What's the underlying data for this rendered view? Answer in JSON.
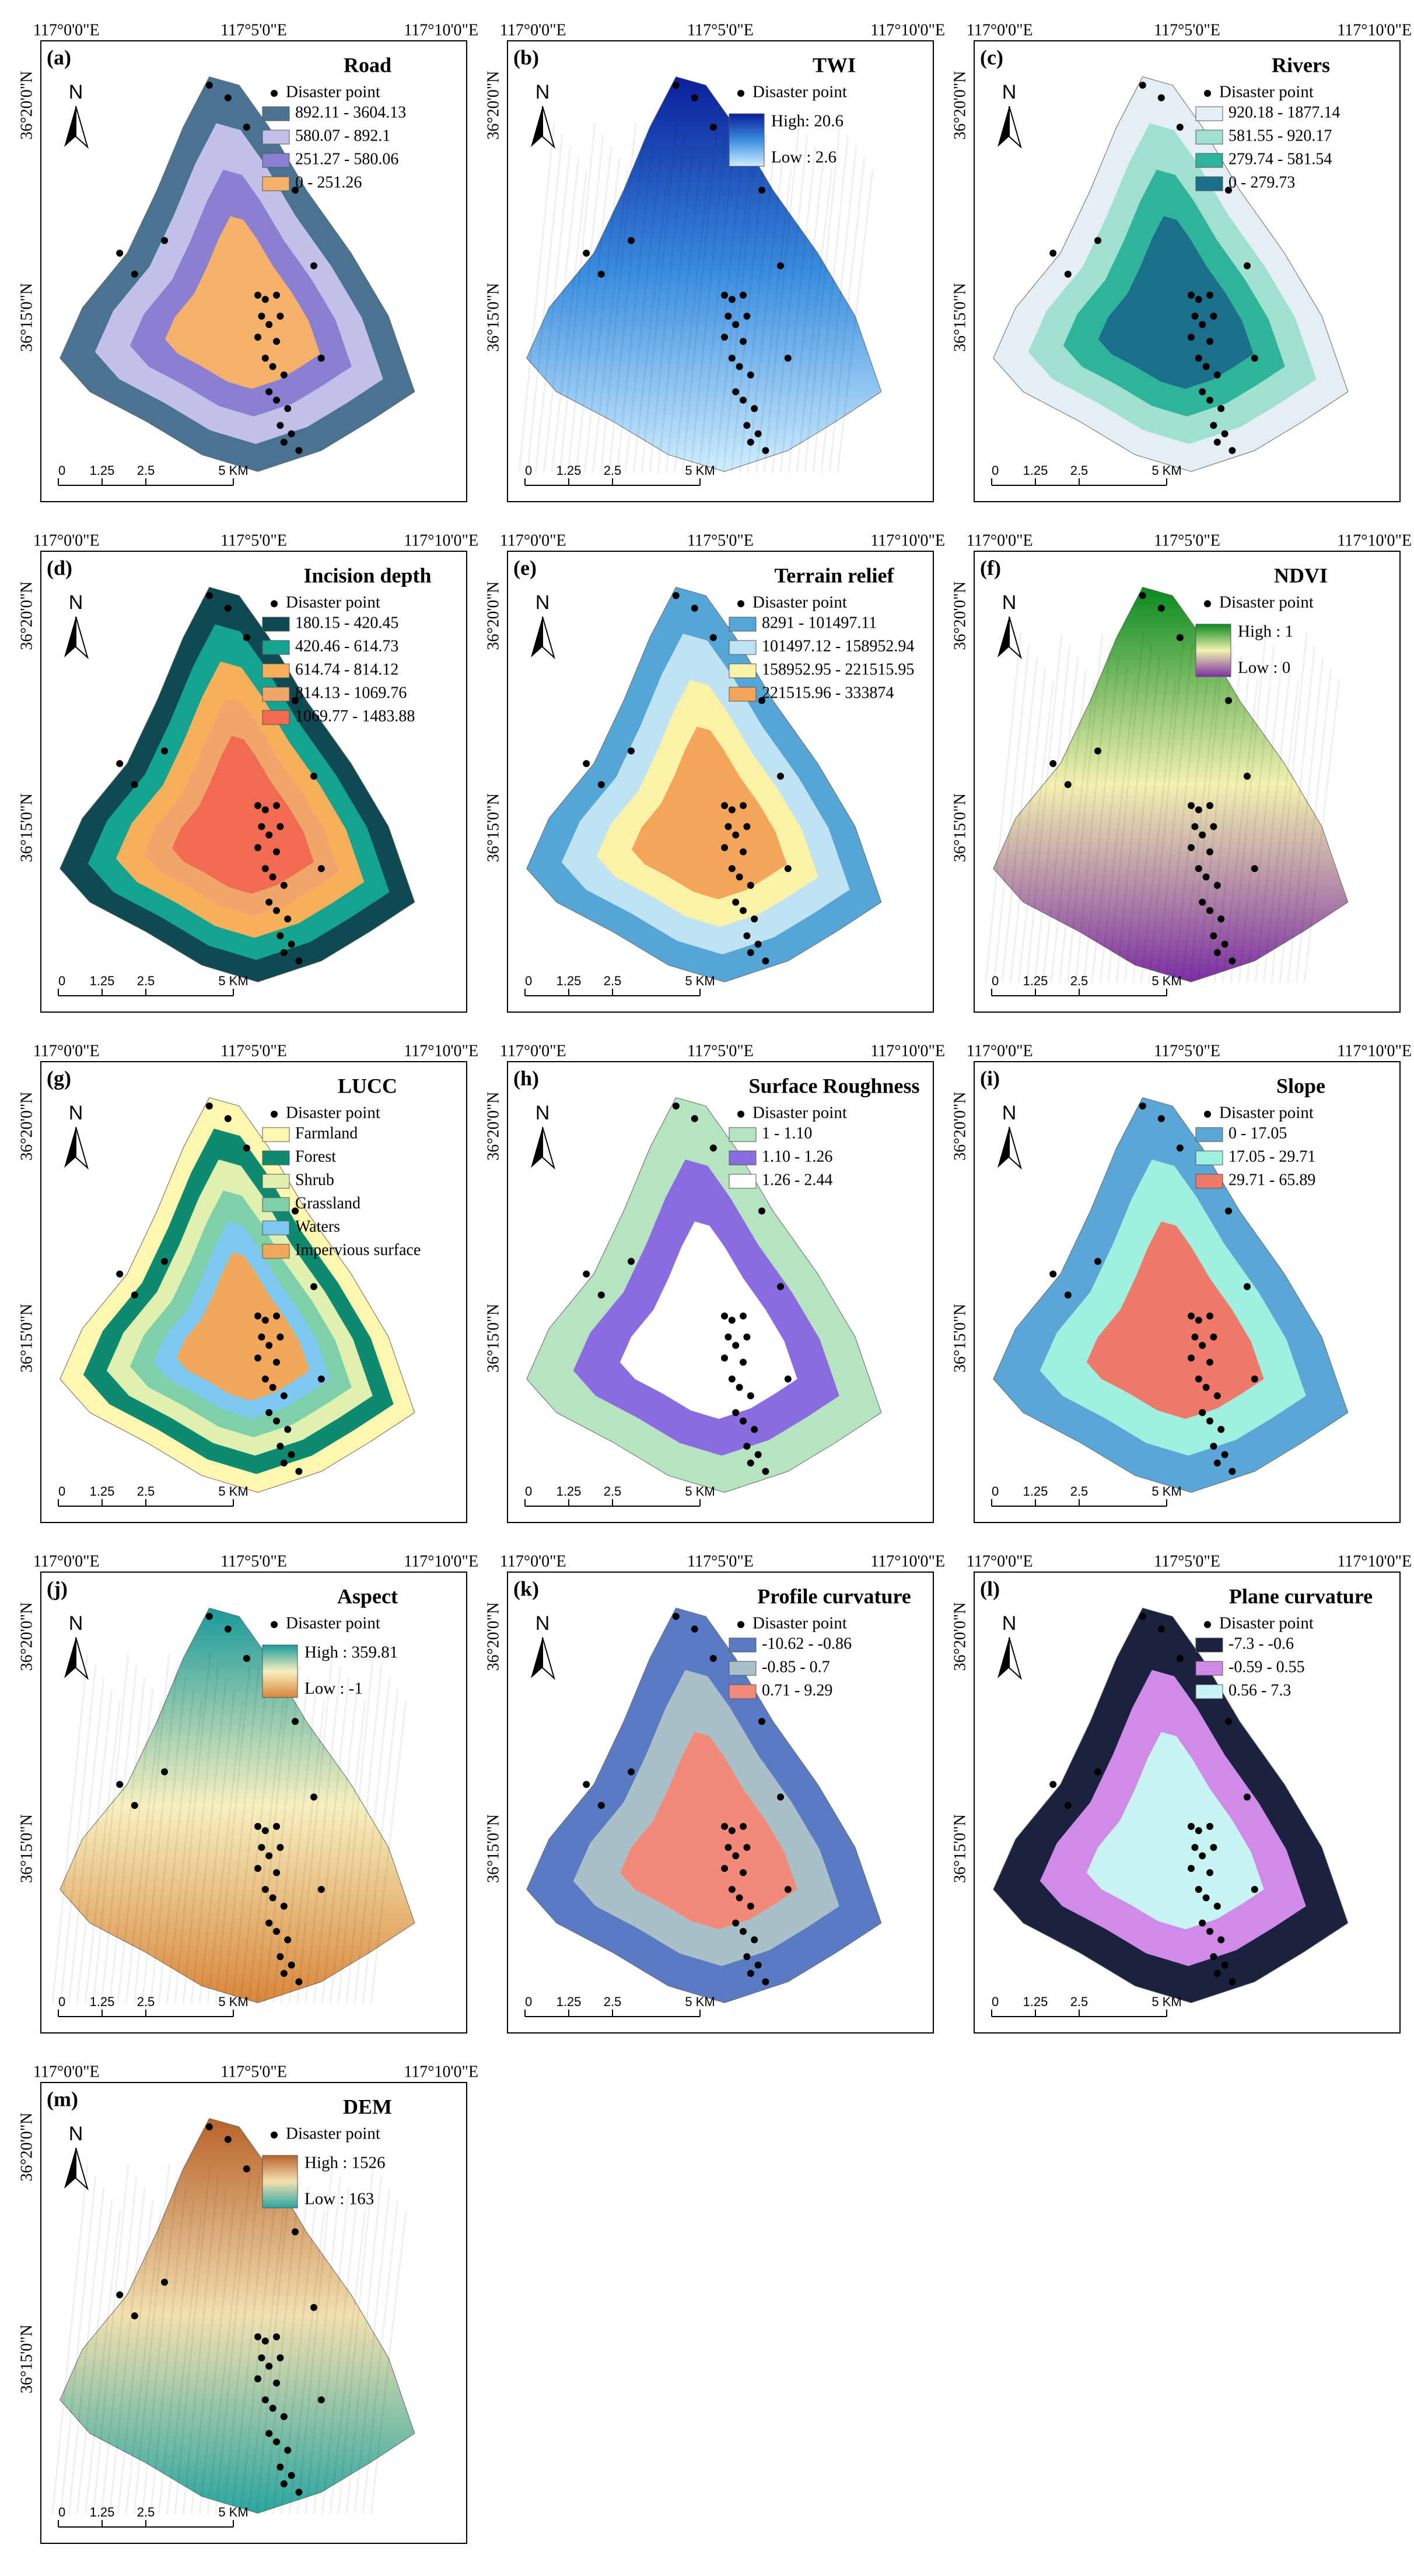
{
  "graticule": {
    "lon": [
      "117°0'0\"E",
      "117°5'0\"E",
      "117°10'0\"E"
    ],
    "lat": [
      "36°20'0\"N",
      "36°15'0\"N"
    ]
  },
  "north": "N",
  "scale_bar": [
    "0",
    "1.25",
    "2.5",
    "5 KM"
  ],
  "panels": [
    {
      "label": "(a)",
      "title": "Road",
      "point": "Disaster point",
      "legend": [
        {
          "text": "892.11 - 3604.13",
          "color": "#4a7391"
        },
        {
          "text": "580.07 - 892.1",
          "color": "#c2bfe8"
        },
        {
          "text": "251.27 - 580.06",
          "color": "#8a7fd0"
        },
        {
          "text": "0 - 251.26",
          "color": "#f5b06a"
        }
      ]
    },
    {
      "label": "(b)",
      "title": "TWI",
      "point": "Disaster point",
      "gradient": {
        "high": "High: 20.6",
        "low": "Low : 2.6",
        "colors": [
          "#0a1f9a",
          "#3a8ee0",
          "#cfeeff"
        ]
      }
    },
    {
      "label": "(c)",
      "title": "Rivers",
      "point": "Disaster point",
      "legend": [
        {
          "text": "920.18 - 1877.14",
          "color": "#e6eef5"
        },
        {
          "text": "581.55 - 920.17",
          "color": "#9fe0cf"
        },
        {
          "text": "279.74 - 581.54",
          "color": "#2fb39a"
        },
        {
          "text": "0 - 279.73",
          "color": "#1b6f8a"
        }
      ]
    },
    {
      "label": "(d)",
      "title": "Incision depth",
      "point": "Disaster point",
      "legend": [
        {
          "text": "180.15 - 420.45",
          "color": "#0f4a52"
        },
        {
          "text": "420.46 - 614.73",
          "color": "#13a38e"
        },
        {
          "text": "614.74 - 814.12",
          "color": "#f6b05c"
        },
        {
          "text": "814.13 - 1069.76",
          "color": "#f0a66a"
        },
        {
          "text": "1069.77 - 1483.88",
          "color": "#f26a50"
        }
      ]
    },
    {
      "label": "(e)",
      "title": "Terrain relief",
      "point": "Disaster point",
      "legend": [
        {
          "text": "8291 - 101497.11",
          "color": "#55a6d6"
        },
        {
          "text": "101497.12 - 158952.94",
          "color": "#bfe3f2"
        },
        {
          "text": "158952.95 - 221515.95",
          "color": "#fbf2a8"
        },
        {
          "text": "221515.96 - 333874",
          "color": "#f4a55a"
        }
      ]
    },
    {
      "label": "(f)",
      "title": "NDVI",
      "point": "Disaster point",
      "gradient": {
        "high": "High : 1",
        "low": "Low : 0",
        "colors": [
          "#0a8a1e",
          "#f3f1b0",
          "#7b2fa3"
        ]
      }
    },
    {
      "label": "(g)",
      "title": "LUCC",
      "point": "Disaster point",
      "legend": [
        {
          "text": "Farmland",
          "color": "#fff6b0"
        },
        {
          "text": "Forest",
          "color": "#0e8a70"
        },
        {
          "text": "Shrub",
          "color": "#dff0b0"
        },
        {
          "text": "Grassland",
          "color": "#7ed0a8"
        },
        {
          "text": "Waters",
          "color": "#7ec8f0"
        },
        {
          "text": "Impervious surface",
          "color": "#f2a85a"
        }
      ]
    },
    {
      "label": "(h)",
      "title": "Surface Roughness",
      "point": "Disaster point",
      "legend": [
        {
          "text": "1 - 1.10",
          "color": "#b6e3c0"
        },
        {
          "text": "1.10 - 1.26",
          "color": "#8a6ce0"
        },
        {
          "text": "1.26 - 2.44",
          "color": "#ffffff"
        }
      ]
    },
    {
      "label": "(i)",
      "title": "Slope",
      "point": "Disaster point",
      "legend": [
        {
          "text": "0 - 17.05",
          "color": "#5aa6d6"
        },
        {
          "text": "17.05 - 29.71",
          "color": "#9ff0e0"
        },
        {
          "text": "29.71 - 65.89",
          "color": "#f07a6a"
        }
      ]
    },
    {
      "label": "(j)",
      "title": "Aspect",
      "point": "Disaster point",
      "gradient": {
        "high": "High : 359.81",
        "low": "Low : -1",
        "colors": [
          "#1a9a9a",
          "#f7f0c0",
          "#d9863a"
        ]
      }
    },
    {
      "label": "(k)",
      "title": "Profile curvature",
      "point": "Disaster point",
      "legend": [
        {
          "text": "-10.62 - -0.86",
          "color": "#5a7bc4"
        },
        {
          "text": "-0.85 - 0.7",
          "color": "#a9c0c8"
        },
        {
          "text": "0.71 - 9.29",
          "color": "#f28a7a"
        }
      ]
    },
    {
      "label": "(l)",
      "title": "Plane curvature",
      "point": "Disaster point",
      "legend": [
        {
          "text": "-7.3 - -0.6",
          "color": "#1a2240"
        },
        {
          "text": "-0.59 - 0.55",
          "color": "#d08ae8"
        },
        {
          "text": "0.56 - 7.3",
          "color": "#c8f4f4"
        }
      ]
    },
    {
      "label": "(m)",
      "title": "DEM",
      "point": "Disaster point",
      "gradient": {
        "high": "High : 1526",
        "low": "Low : 163",
        "colors": [
          "#b8632a",
          "#f2e0b0",
          "#2aa6a0"
        ]
      }
    }
  ]
}
